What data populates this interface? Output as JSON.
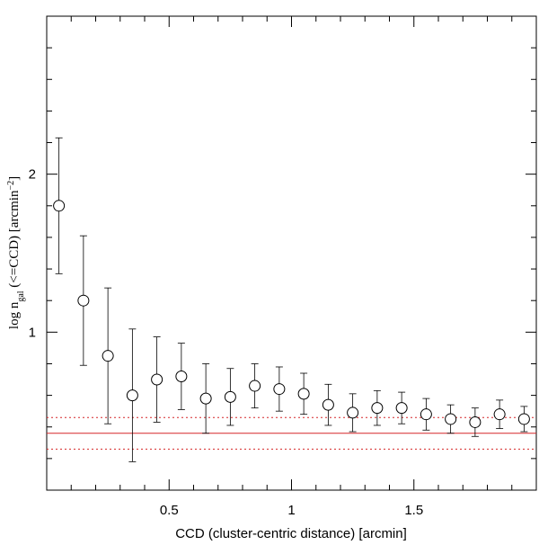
{
  "chart_data": {
    "type": "errorbar",
    "xlabel": "CCD (cluster-centric distance)  [arcmin]",
    "ylabel": [
      {
        "text": "log  n"
      },
      {
        "text": "gal",
        "shift": "sub"
      },
      {
        "text": "  (<=CCD)   [arcmin"
      },
      {
        "text": "−2",
        "shift": "super"
      },
      {
        "text": "]"
      }
    ],
    "x": [
      0.05,
      0.15,
      0.25,
      0.35,
      0.45,
      0.55,
      0.65,
      0.75,
      0.85,
      0.95,
      1.05,
      1.15,
      1.25,
      1.35,
      1.45,
      1.55,
      1.65,
      1.75,
      1.85,
      1.95
    ],
    "values": [
      1.8,
      1.2,
      0.85,
      0.6,
      0.7,
      0.72,
      0.58,
      0.59,
      0.66,
      0.64,
      0.61,
      0.54,
      0.49,
      0.52,
      0.52,
      0.48,
      0.45,
      0.43,
      0.48,
      0.45
    ],
    "errors": [
      0.43,
      0.41,
      0.43,
      0.42,
      0.27,
      0.21,
      0.22,
      0.18,
      0.14,
      0.14,
      0.13,
      0.13,
      0.12,
      0.11,
      0.1,
      0.1,
      0.09,
      0.09,
      0.09,
      0.08
    ],
    "color": "#000000",
    "hlines": [
      {
        "value": 0.36,
        "style": "solid"
      },
      {
        "value": 0.46,
        "style": "dotted"
      },
      {
        "value": 0.26,
        "style": "dotted"
      }
    ],
    "hline_color": "#d62728",
    "xlim": [
      0,
      2
    ],
    "ylim": [
      0,
      3
    ],
    "xticks": [
      0.5,
      1,
      1.5
    ],
    "yticks": [
      1,
      2
    ],
    "xticks_minor": [
      0.1,
      0.2,
      0.3,
      0.4,
      0.6,
      0.7,
      0.8,
      0.9,
      1.1,
      1.2,
      1.3,
      1.4,
      1.6,
      1.7,
      1.8,
      1.9
    ],
    "yticks_minor": [
      0.2,
      0.4,
      0.6,
      0.8,
      1.2,
      1.4,
      1.6,
      1.8,
      2.2,
      2.4,
      2.6,
      2.8
    ]
  }
}
